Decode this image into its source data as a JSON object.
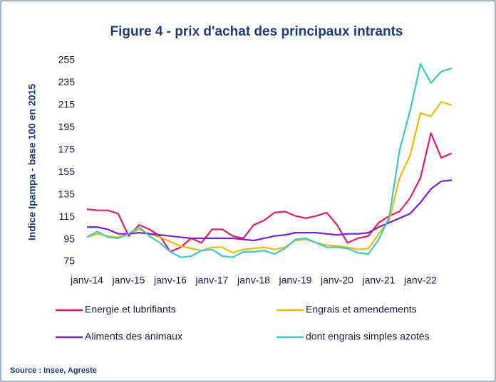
{
  "chart_data": {
    "type": "line",
    "title": "Figure 4 - prix d'achat des principaux intrants",
    "y_label": "Indice Ipampa - base 100 en 2015",
    "source": "Source : Insee, Agreste",
    "categories": [
      "janv-14",
      null,
      null,
      null,
      "janv-15",
      null,
      null,
      null,
      "janv-16",
      null,
      null,
      null,
      "janv-17",
      null,
      null,
      null,
      "janv-18",
      null,
      null,
      null,
      "janv-19",
      null,
      null,
      null,
      "janv-20",
      null,
      null,
      null,
      "janv-21",
      null,
      null,
      null,
      "janv-22",
      null,
      null,
      null
    ],
    "series": [
      {
        "name": "Energie et lubrifiants",
        "color": "#e6196e",
        "values": [
          122,
          121,
          121,
          118,
          98,
          108,
          104,
          98,
          84,
          88,
          96,
          92,
          104,
          104,
          98,
          96,
          108,
          112,
          119,
          120,
          116,
          114,
          116,
          119,
          108,
          92,
          96,
          98,
          110,
          116,
          120,
          132,
          150,
          190,
          168,
          172
        ]
      },
      {
        "name": "Engrais et amendements",
        "color": "#f5b800",
        "values": [
          97,
          100,
          98,
          97,
          100,
          104,
          100,
          97,
          93,
          89,
          87,
          85,
          88,
          88,
          83,
          86,
          87,
          88,
          86,
          88,
          94,
          95,
          92,
          90,
          89,
          88,
          86,
          87,
          100,
          112,
          150,
          170,
          208,
          205,
          218,
          215
        ]
      },
      {
        "name": "Aliments des animaux",
        "color": "#7a1fd6",
        "values": [
          106,
          106,
          104,
          100,
          100,
          101,
          100,
          99,
          98,
          97,
          96,
          96,
          96,
          96,
          96,
          95,
          94,
          96,
          98,
          99,
          101,
          101,
          101,
          100,
          99,
          100,
          100,
          101,
          106,
          110,
          114,
          118,
          128,
          140,
          147,
          148
        ]
      },
      {
        "name": "dont engrais simples azotés",
        "color": "#3cc8c8",
        "values": [
          97,
          102,
          97,
          96,
          100,
          106,
          98,
          92,
          84,
          79,
          80,
          85,
          86,
          80,
          79,
          84,
          84,
          85,
          82,
          87,
          95,
          96,
          92,
          88,
          88,
          87,
          83,
          82,
          95,
          115,
          175,
          210,
          252,
          235,
          245,
          248
        ]
      }
    ],
    "ylim": [
      75,
      255
    ],
    "yticks": [
      75,
      95,
      115,
      135,
      155,
      175,
      195,
      215,
      235,
      255
    ],
    "grid": false
  }
}
